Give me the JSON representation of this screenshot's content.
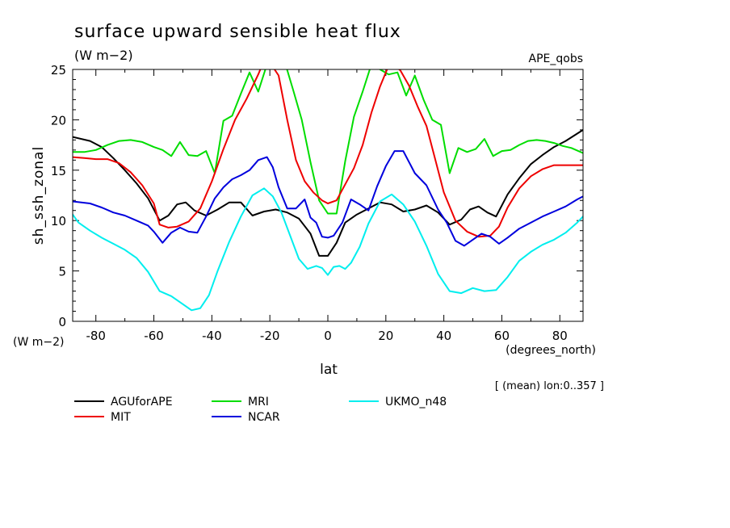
{
  "chart_data": {
    "type": "line",
    "title": "surface upward sensible heat flux",
    "subtitle": "(W m−2)",
    "annotation": "APE_qobs",
    "ylabel": "sh_ssh_zonal",
    "yunit": "(W m−2)",
    "xlabel": "lat",
    "xunit": "(degrees_north)",
    "footnote": "[ (mean) lon:0..357 ]",
    "xlim": [
      -88,
      88
    ],
    "ylim": [
      0,
      25
    ],
    "xticks": [
      -80,
      -60,
      -40,
      -20,
      0,
      20,
      40,
      60,
      80
    ],
    "yticks": [
      0,
      5,
      10,
      15,
      20,
      25
    ],
    "grid": false,
    "legend_position": "below",
    "series": [
      {
        "name": "AGUforAPE",
        "color": "#000000",
        "x": [
          -88,
          -82,
          -78,
          -74,
          -70,
          -66,
          -62,
          -58,
          -55,
          -52,
          -49,
          -46,
          -42,
          -38,
          -34,
          -30,
          -26,
          -22,
          -18,
          -14,
          -10,
          -6,
          -3,
          0,
          3,
          6,
          10,
          14,
          18,
          22,
          26,
          30,
          34,
          38,
          42,
          46,
          49,
          52,
          55,
          58,
          62,
          66,
          70,
          74,
          78,
          82,
          88
        ],
        "y": [
          18.3,
          17.9,
          17.3,
          16.2,
          15.0,
          13.7,
          12.2,
          10.0,
          10.5,
          11.6,
          11.8,
          11.0,
          10.5,
          11.1,
          11.8,
          11.8,
          10.5,
          10.9,
          11.1,
          10.8,
          10.2,
          8.7,
          6.5,
          6.5,
          7.8,
          9.8,
          10.6,
          11.2,
          11.8,
          11.6,
          10.9,
          11.1,
          11.5,
          10.8,
          9.6,
          10.1,
          11.1,
          11.4,
          10.8,
          10.4,
          12.6,
          14.2,
          15.6,
          16.5,
          17.3,
          17.9,
          19.0
        ]
      },
      {
        "name": "MRI",
        "color": "#00dd00",
        "x": [
          -88,
          -84,
          -80,
          -76,
          -72,
          -68,
          -64,
          -60,
          -57,
          -54,
          -51,
          -48,
          -45,
          -42,
          -39,
          -36,
          -33,
          -30,
          -27,
          -24,
          -21,
          -18,
          -15,
          -12,
          -9,
          -6,
          -3,
          0,
          3,
          6,
          9,
          12,
          15,
          18,
          21,
          24,
          27,
          30,
          33,
          36,
          39,
          42,
          45,
          48,
          51,
          54,
          57,
          60,
          63,
          66,
          69,
          72,
          75,
          78,
          81,
          84,
          88
        ],
        "y": [
          16.8,
          16.8,
          17.0,
          17.5,
          17.9,
          18.0,
          17.8,
          17.3,
          17.0,
          16.4,
          17.8,
          16.5,
          16.4,
          16.9,
          14.7,
          19.9,
          20.4,
          22.6,
          24.7,
          22.8,
          25.5,
          25.4,
          25.9,
          23.0,
          20.0,
          15.8,
          12.0,
          10.7,
          10.7,
          15.9,
          20.3,
          22.8,
          25.5,
          25.0,
          24.5,
          24.7,
          22.4,
          24.4,
          22.0,
          20.0,
          19.5,
          14.7,
          17.2,
          16.8,
          17.1,
          18.1,
          16.4,
          16.9,
          17.0,
          17.5,
          17.9,
          18.0,
          17.9,
          17.7,
          17.4,
          17.2,
          16.7
        ]
      },
      {
        "name": "UKMO_n48",
        "color": "#00eeee",
        "x": [
          -90,
          -86,
          -82,
          -78,
          -74,
          -70,
          -66,
          -62,
          -58,
          -54,
          -50,
          -47,
          -44,
          -41,
          -38,
          -34,
          -30,
          -26,
          -22,
          -19,
          -16,
          -13,
          -10,
          -7,
          -4,
          -2,
          0,
          2,
          4,
          6,
          8,
          11,
          14,
          18,
          22,
          26,
          30,
          34,
          38,
          42,
          46,
          50,
          54,
          58,
          62,
          66,
          70,
          74,
          78,
          82,
          86,
          90
        ],
        "y": [
          11.4,
          9.8,
          9.0,
          8.3,
          7.7,
          7.1,
          6.3,
          4.9,
          3.0,
          2.5,
          1.7,
          1.1,
          1.3,
          2.6,
          5.0,
          7.9,
          10.4,
          12.5,
          13.2,
          12.4,
          10.8,
          8.5,
          6.2,
          5.2,
          5.5,
          5.3,
          4.6,
          5.4,
          5.5,
          5.2,
          5.8,
          7.4,
          9.7,
          11.9,
          12.6,
          11.6,
          9.9,
          7.5,
          4.7,
          3.0,
          2.8,
          3.3,
          3.0,
          3.1,
          4.4,
          6.0,
          6.9,
          7.6,
          8.1,
          8.8,
          9.8,
          11.0
        ]
      },
      {
        "name": "MIT",
        "color": "#ee0000",
        "x": [
          -88,
          -84,
          -80,
          -76,
          -72,
          -68,
          -64,
          -60,
          -58,
          -55,
          -52,
          -48,
          -44,
          -40,
          -36,
          -32,
          -28,
          -24,
          -22,
          -20,
          -17,
          -14,
          -11,
          -8,
          -5,
          -2,
          0,
          3,
          6,
          9,
          12,
          15,
          18,
          21,
          23,
          25,
          28,
          31,
          34,
          37,
          40,
          44,
          48,
          52,
          56,
          59,
          62,
          66,
          70,
          74,
          78,
          82,
          88
        ],
        "y": [
          16.3,
          16.2,
          16.1,
          16.1,
          15.7,
          14.8,
          13.5,
          11.7,
          9.6,
          9.3,
          9.4,
          9.9,
          11.2,
          13.9,
          17.1,
          20.0,
          22.1,
          24.5,
          25.9,
          25.7,
          24.4,
          20.0,
          16.0,
          13.9,
          12.8,
          12.0,
          11.7,
          12.0,
          13.6,
          15.2,
          17.5,
          20.7,
          23.3,
          25.4,
          25.4,
          24.9,
          23.4,
          21.3,
          19.4,
          16.1,
          12.8,
          10.0,
          8.9,
          8.4,
          8.5,
          9.4,
          11.3,
          13.2,
          14.4,
          15.1,
          15.5,
          15.5,
          15.5
        ]
      },
      {
        "name": "NCAR",
        "color": "#0000dd",
        "x": [
          -88,
          -82,
          -78,
          -74,
          -70,
          -66,
          -62,
          -60,
          -57,
          -54,
          -51,
          -48,
          -45,
          -42,
          -39,
          -36,
          -33,
          -30,
          -27,
          -24,
          -21,
          -19,
          -17,
          -14,
          -11,
          -8,
          -6,
          -4,
          -2,
          0,
          2,
          5,
          8,
          11,
          14,
          17,
          20,
          23,
          26,
          30,
          34,
          38,
          41,
          44,
          47,
          50,
          53,
          56,
          59,
          62,
          66,
          70,
          74,
          78,
          82,
          86,
          88
        ],
        "y": [
          11.9,
          11.7,
          11.3,
          10.8,
          10.5,
          10.0,
          9.5,
          8.9,
          7.8,
          8.8,
          9.3,
          8.9,
          8.8,
          10.4,
          12.2,
          13.3,
          14.1,
          14.5,
          15.0,
          16.0,
          16.3,
          15.3,
          13.3,
          11.2,
          11.2,
          12.1,
          10.3,
          9.8,
          8.4,
          8.3,
          8.5,
          9.8,
          12.1,
          11.6,
          11.0,
          13.4,
          15.4,
          16.9,
          16.9,
          14.7,
          13.5,
          11.1,
          9.8,
          8.0,
          7.5,
          8.1,
          8.7,
          8.4,
          7.7,
          8.3,
          9.2,
          9.8,
          10.4,
          10.9,
          11.4,
          12.1,
          12.4
        ]
      }
    ],
    "legend": [
      {
        "name": "AGUforAPE",
        "color": "#000000"
      },
      {
        "name": "MIT",
        "color": "#ee0000"
      },
      {
        "name": "MRI",
        "color": "#00dd00"
      },
      {
        "name": "NCAR",
        "color": "#0000dd"
      },
      {
        "name": "UKMO_n48",
        "color": "#00eeee"
      }
    ]
  }
}
